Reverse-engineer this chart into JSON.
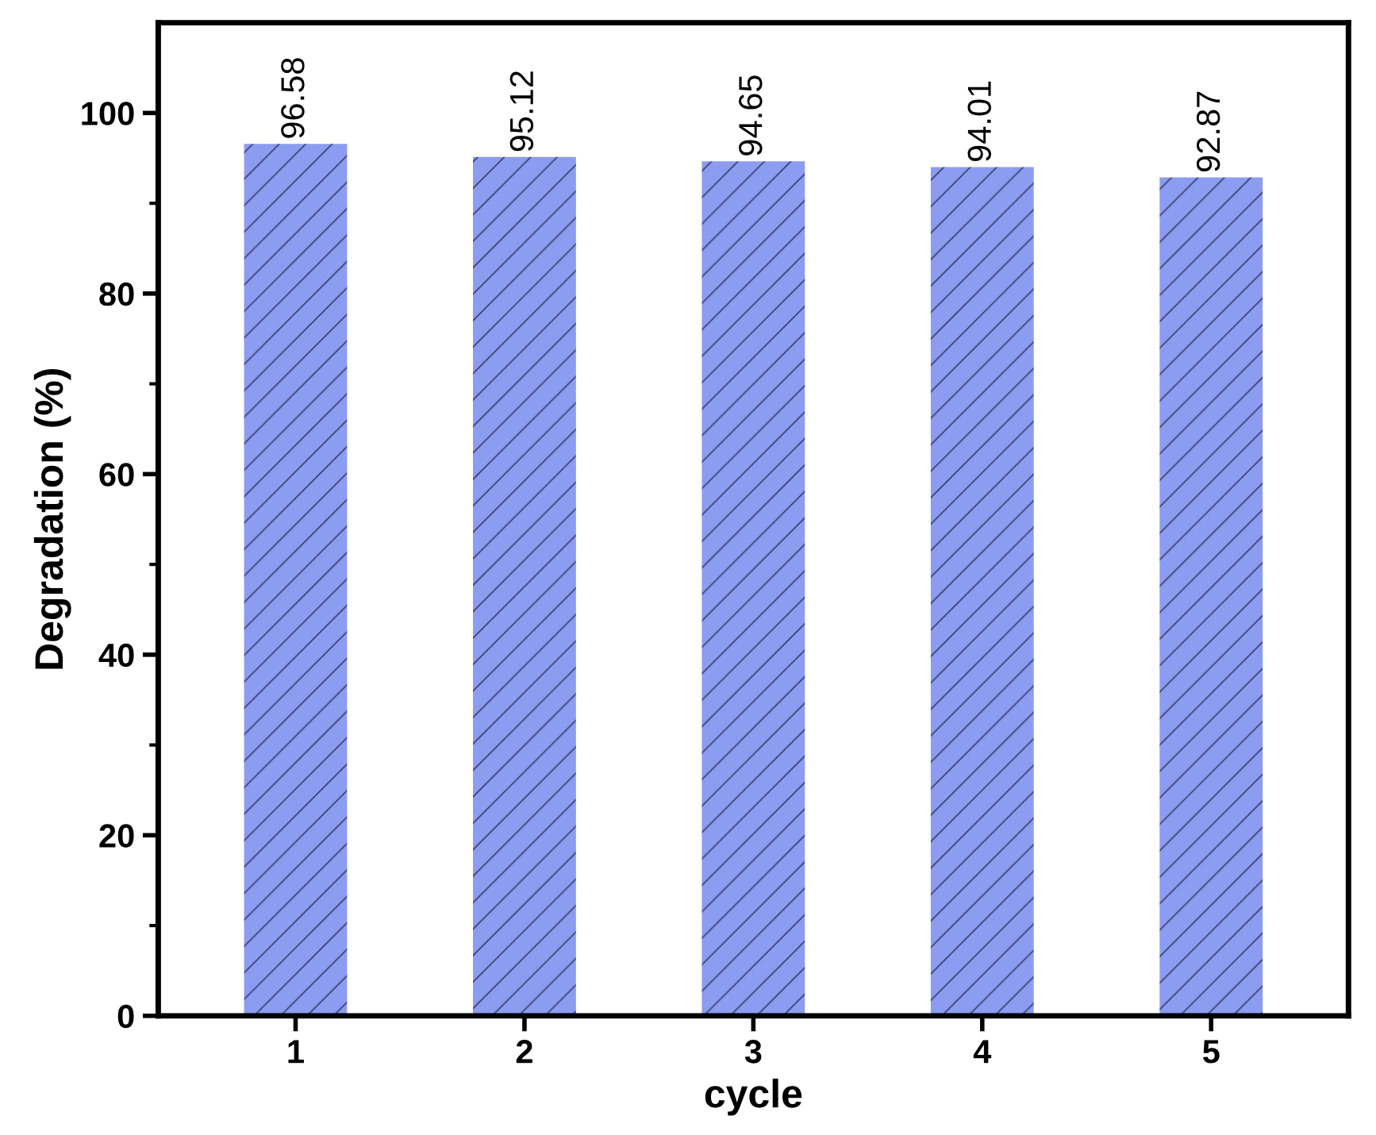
{
  "chart_data": {
    "type": "bar",
    "xlabel": "cycle",
    "ylabel": "Degradation (%)",
    "categories": [
      "1",
      "2",
      "3",
      "4",
      "5"
    ],
    "values": [
      96.58,
      95.12,
      94.65,
      94.01,
      92.87
    ],
    "color": "#8c9cf0",
    "ylim": [
      0,
      110
    ],
    "yticks": [
      0,
      20,
      40,
      60,
      80,
      100
    ],
    "data_labels": true,
    "grid": false,
    "legend": false
  }
}
